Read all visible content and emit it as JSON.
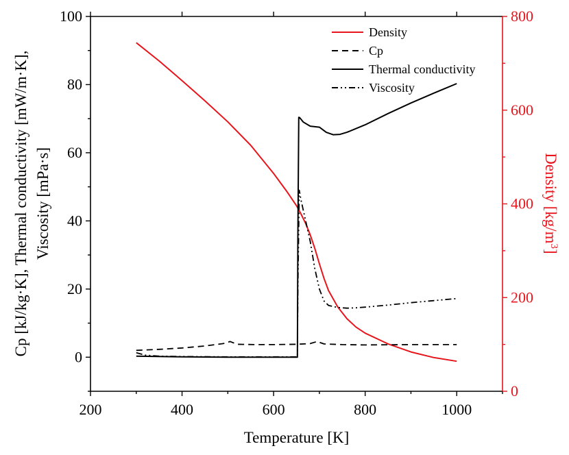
{
  "chart_data": {
    "type": "line",
    "xlabel": "Temperature [K]",
    "ylabel_left_lines": [
      "Cp [kJ/kg·K], Thermal conductivity [mW/m·K],",
      "Viscosity [mPa·s]"
    ],
    "ylabel_right": "Density [kg/m",
    "ylabel_right_sup": "3",
    "ylabel_right_end": "]",
    "xlim": [
      200,
      1100
    ],
    "ylim_left": [
      -10,
      100
    ],
    "ylim_right": [
      0,
      800
    ],
    "xticks": [
      200,
      400,
      600,
      800,
      1000
    ],
    "yticks_left": [
      0,
      20,
      40,
      60,
      80,
      100
    ],
    "yticks_right": [
      0,
      200,
      400,
      600,
      800
    ],
    "xtick_labels": [
      "200",
      "400",
      "600",
      "800",
      "1000"
    ],
    "ytick_labels_left": [
      "0",
      "20",
      "40",
      "60",
      "80",
      "100"
    ],
    "ytick_labels_right": [
      "0",
      "200",
      "400",
      "600",
      "800"
    ],
    "legend_position": "top-right",
    "colors": {
      "density": "#e8141b",
      "default": "#000000"
    },
    "series": [
      {
        "name": "Density",
        "axis": "right",
        "style": "solid",
        "color": "#e8141b",
        "x": [
          300,
          350,
          400,
          450,
          500,
          550,
          600,
          630,
          650,
          660,
          670,
          680,
          690,
          700,
          710,
          720,
          740,
          760,
          780,
          800,
          850,
          900,
          950,
          1000
        ],
        "y": [
          744,
          705,
          663,
          620,
          575,
          525,
          465,
          425,
          396,
          378,
          358,
          334,
          305,
          272,
          241,
          215,
          180,
          155,
          137,
          124,
          101,
          84,
          72,
          64
        ]
      },
      {
        "name": "Cp",
        "axis": "left",
        "style": "dash",
        "color": "#000000",
        "x": [
          300,
          350,
          400,
          450,
          490,
          505,
          520,
          560,
          600,
          650,
          680,
          695,
          710,
          750,
          800,
          900,
          1000
        ],
        "y": [
          2.0,
          2.3,
          2.7,
          3.3,
          4.0,
          4.6,
          3.8,
          3.7,
          3.7,
          3.8,
          4.0,
          4.6,
          3.9,
          3.7,
          3.6,
          3.7,
          3.7
        ]
      },
      {
        "name": "Thermal conductivity",
        "axis": "left",
        "style": "solid",
        "color": "#000000",
        "x": [
          300,
          400,
          500,
          600,
          652,
          653,
          655,
          657,
          665,
          680,
          700,
          715,
          730,
          745,
          760,
          800,
          850,
          900,
          950,
          1000
        ],
        "y": [
          0.3,
          0.1,
          0.0,
          0.0,
          0.0,
          35.0,
          70.4,
          70.3,
          69.0,
          67.8,
          67.5,
          66.0,
          65.3,
          65.4,
          66.0,
          68.2,
          71.5,
          74.6,
          77.5,
          80.3
        ]
      },
      {
        "name": "Viscosity",
        "axis": "left",
        "style": "dashdotdot",
        "color": "#000000",
        "x": [
          300,
          320,
          350,
          400,
          500,
          600,
          652,
          653,
          656,
          660,
          670,
          680,
          690,
          700,
          710,
          720,
          740,
          760,
          780,
          800,
          850,
          900,
          950,
          1000
        ],
        "y": [
          1.3,
          0.6,
          0.3,
          0.2,
          0.1,
          0.1,
          0.1,
          20.0,
          49.0,
          46.0,
          40.0,
          34.0,
          26.0,
          20.0,
          16.5,
          15.2,
          14.6,
          14.4,
          14.5,
          14.7,
          15.3,
          16.0,
          16.6,
          17.2
        ]
      }
    ]
  }
}
